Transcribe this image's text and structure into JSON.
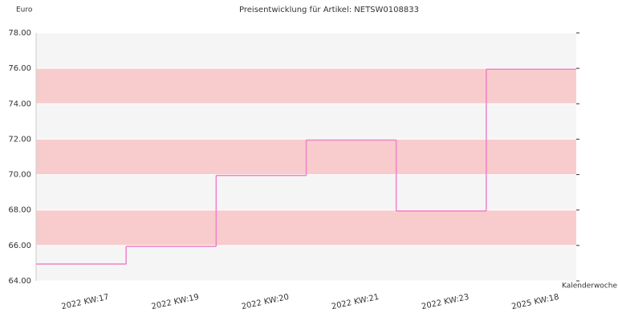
{
  "chart_data": {
    "type": "step",
    "title": "Preisentwicklung für Artikel: NETSW0108833",
    "y_label": "Euro",
    "x_label": "Kalenderwoche",
    "categories": [
      "2022 KW:17",
      "2022 KW:19",
      "2022 KW:20",
      "2022 KW:21",
      "2022 KW:23",
      "2025 KW:18"
    ],
    "values": [
      64.95,
      65.95,
      69.95,
      71.95,
      67.95,
      75.95
    ],
    "color": "#ee82c8",
    "ylim": [
      64,
      78
    ],
    "yticks": [
      {
        "value": 64,
        "label": "64.00"
      },
      {
        "value": 66,
        "label": "66.00"
      },
      {
        "value": 68,
        "label": "68.00"
      },
      {
        "value": 70,
        "label": "70.00"
      },
      {
        "value": 72,
        "label": "72.00"
      },
      {
        "value": 74,
        "label": "74.00"
      },
      {
        "value": 76,
        "label": "76.00"
      },
      {
        "value": 78,
        "label": "78.00"
      }
    ],
    "band_colors": [
      "#f5f5f5",
      "#f8cccc"
    ]
  }
}
